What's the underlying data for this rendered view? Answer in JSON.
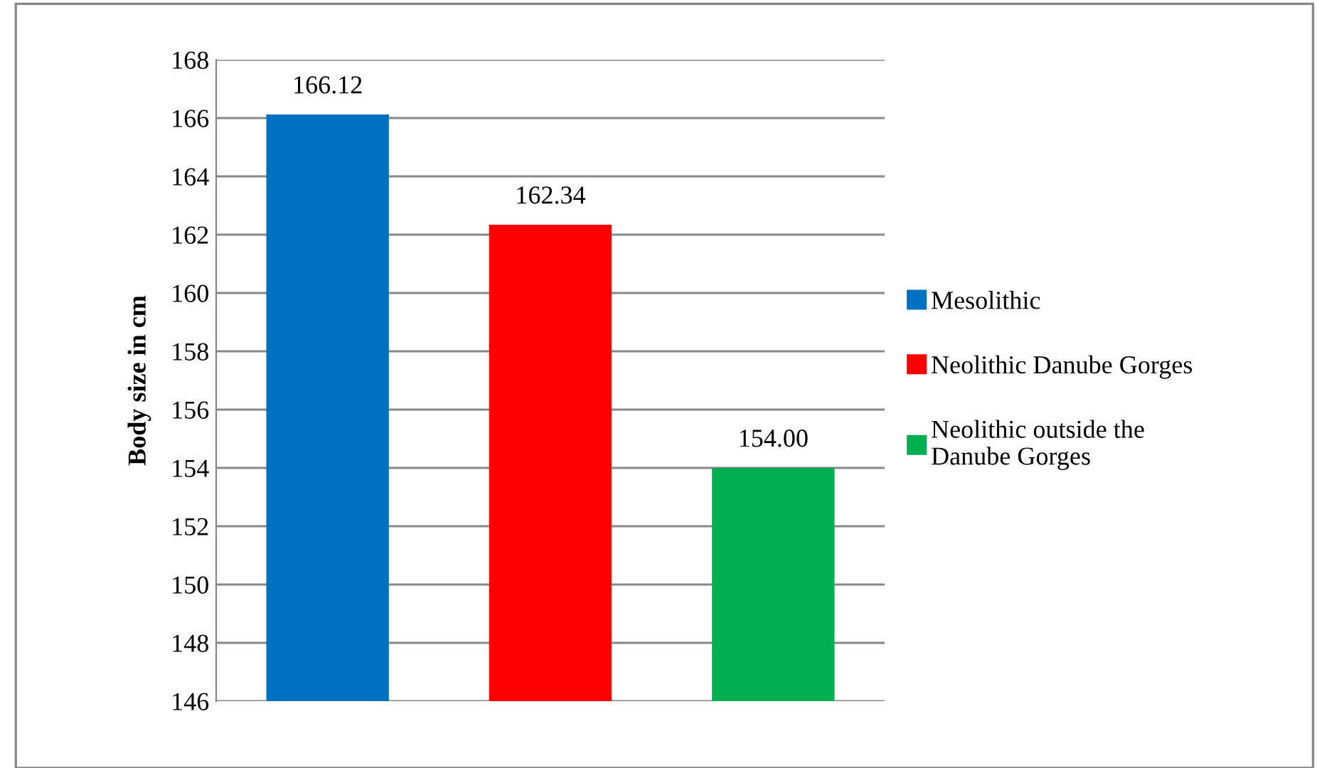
{
  "chart_data": {
    "type": "bar",
    "ylabel": "Body size in cm",
    "categories": [
      null,
      null,
      null
    ],
    "series": [
      {
        "name": "Mesolithic",
        "color": "#0070c0",
        "values": [
          166.12,
          null,
          null
        ],
        "value_labels": [
          "166.12",
          null,
          null
        ]
      },
      {
        "name": "Neolithic Danube Gorges",
        "color": "#ff0000",
        "values": [
          null,
          162.34,
          null
        ],
        "value_labels": [
          null,
          "162.34",
          null
        ]
      },
      {
        "name": "Neolithic outside the\nDanube Gorges",
        "color": "#00b050",
        "values": [
          null,
          null,
          154.0
        ],
        "value_labels": [
          null,
          null,
          "154.00"
        ]
      }
    ],
    "ylim": [
      146,
      168
    ],
    "yticks": [
      146,
      148,
      150,
      152,
      154,
      156,
      158,
      160,
      162,
      164,
      166,
      168
    ],
    "grid": "y",
    "legend": "right",
    "tick_labels": "y"
  }
}
